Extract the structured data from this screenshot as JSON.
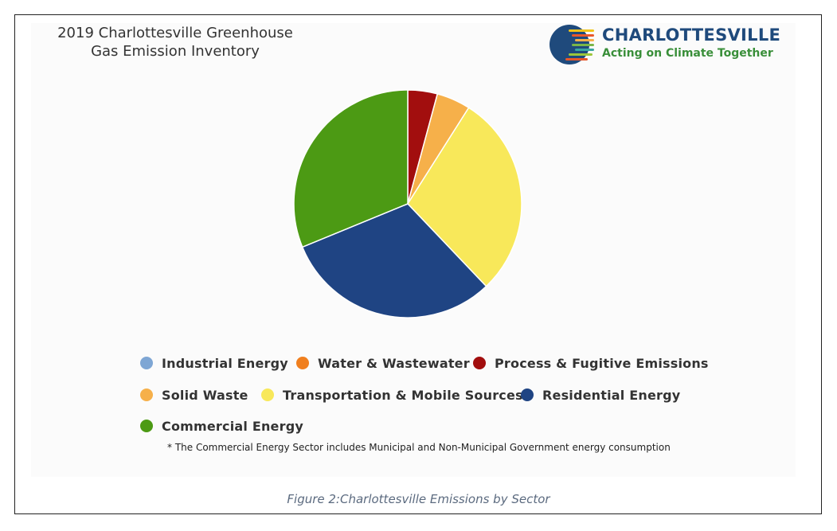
{
  "title_lines": [
    "2019 Charlottesville Greenhouse",
    "Gas Emission Inventory"
  ],
  "logo": {
    "name": "CHARLOTTESVILLE",
    "tagline": "Acting on Climate Together",
    "name_color": "#1f4a7c",
    "tagline_color": "#3a8f3a"
  },
  "chart_data": {
    "type": "pie",
    "title": "2019 Charlottesville Greenhouse Gas Emission Inventory",
    "slices": [
      {
        "label": "Industrial Energy",
        "value": 0.0,
        "color": "#7ea6d4"
      },
      {
        "label": "Water & Wastewater",
        "value": 0.0,
        "color": "#f07f1e"
      },
      {
        "label": "Process & Fugitive Emissions",
        "value": 4.2,
        "color": "#a20e0e"
      },
      {
        "label": "Solid Waste",
        "value": 4.8,
        "color": "#f6b04a"
      },
      {
        "label": "Transportation & Mobile Sources",
        "value": 28.9,
        "color": "#f8e85a"
      },
      {
        "label": "Residential Energy",
        "value": 30.9,
        "color": "#1f4483"
      },
      {
        "label": "Commercial Energy",
        "value": 31.2,
        "color": "#4c9a14"
      }
    ],
    "legend_position": "bottom"
  },
  "footnote": "* The Commercial Energy Sector includes Municipal and Non-Municipal Government energy consumption",
  "caption": "Figure 2:Charlottesville Emissions by Sector"
}
